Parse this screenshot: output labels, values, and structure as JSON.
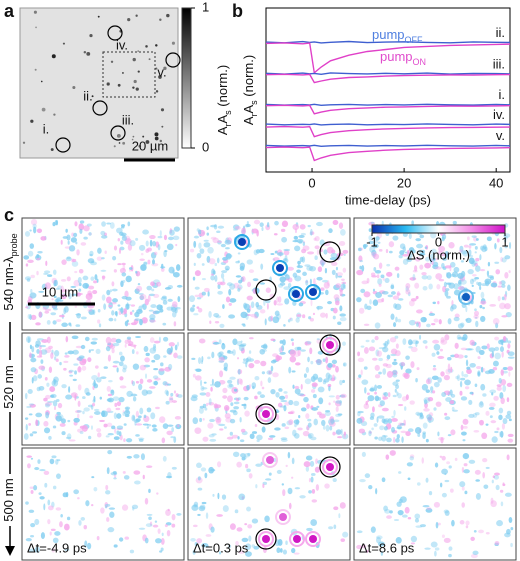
{
  "panel_a": {
    "label": "a",
    "scale_bar": "20 µm",
    "markers": [
      "i.",
      "ii.",
      "iii.",
      "iv.",
      "v."
    ],
    "colorbar": {
      "lim": [
        0,
        1
      ],
      "ticks": [
        0,
        1
      ],
      "label": {
        "parts": [
          "A",
          "r",
          "A",
          "s",
          " (norm.)"
        ],
        "sub": [
          false,
          true,
          false,
          true,
          false
        ]
      }
    }
  },
  "chart_data": {
    "type": "line",
    "label": "b",
    "x_label": "time-delay (ps)",
    "y_label": {
      "parts": [
        "A",
        "r",
        "A",
        "s",
        " (norm.)"
      ],
      "sub": [
        false,
        true,
        false,
        true,
        false
      ]
    },
    "xlim": [
      -10,
      43
    ],
    "xticks": [
      0,
      20,
      40
    ],
    "ylim": [
      0,
      10
    ],
    "legend": [
      {
        "parts": [
          "pump",
          "OFF"
        ],
        "sub": [
          false,
          true
        ],
        "color": "#4f7fe0"
      },
      {
        "parts": [
          "pump",
          "ON"
        ],
        "sub": [
          false,
          true
        ],
        "color": "#e04ccc"
      }
    ],
    "trace_labels": [
      "ii.",
      "iii.",
      "i.",
      "iv.",
      "v."
    ],
    "x": [
      -10,
      -6,
      -2,
      -0.5,
      0.5,
      2,
      4,
      8,
      12,
      16,
      20,
      25,
      30,
      35,
      40,
      43
    ],
    "series": [
      {
        "color": "#3f5fd0",
        "values": [
          7.92,
          7.88,
          7.95,
          7.9,
          7.93,
          7.87,
          7.91,
          7.96,
          7.89,
          7.92,
          7.94,
          7.9,
          7.88,
          7.93,
          7.91,
          7.9
        ]
      },
      {
        "color": "#e040c8",
        "values": [
          7.84,
          7.87,
          7.82,
          7.86,
          6.05,
          6.4,
          6.78,
          7.12,
          7.35,
          7.47,
          7.6,
          7.66,
          7.72,
          7.75,
          7.78,
          7.8
        ]
      },
      {
        "color": "#3f5fd0",
        "values": [
          6.02,
          5.97,
          6.03,
          5.99,
          6.01,
          5.96,
          6.04,
          6.0,
          5.98,
          6.02,
          5.99,
          6.03,
          5.97,
          6.01,
          6.0,
          5.98
        ]
      },
      {
        "color": "#e040c8",
        "values": [
          5.93,
          5.96,
          5.92,
          5.95,
          5.45,
          5.55,
          5.66,
          5.76,
          5.8,
          5.85,
          5.88,
          5.9,
          5.92,
          5.91,
          5.93,
          5.94
        ]
      },
      {
        "color": "#3f5fd0",
        "values": [
          4.12,
          4.08,
          4.11,
          4.09,
          4.13,
          4.07,
          4.1,
          4.12,
          4.08,
          4.11,
          4.09,
          4.13,
          4.1,
          4.08,
          4.12,
          4.1
        ]
      },
      {
        "color": "#e040c8",
        "values": [
          4.04,
          4.07,
          4.03,
          4.06,
          3.55,
          3.65,
          3.76,
          3.86,
          3.91,
          3.95,
          3.97,
          4.0,
          4.02,
          4.01,
          4.03,
          4.04
        ]
      },
      {
        "color": "#3f5fd0",
        "values": [
          2.92,
          2.88,
          2.91,
          2.89,
          2.93,
          2.87,
          2.9,
          2.92,
          2.88,
          2.91,
          2.89,
          2.93,
          2.9,
          2.88,
          2.92,
          2.9
        ]
      },
      {
        "color": "#e040c8",
        "values": [
          2.74,
          2.77,
          2.73,
          2.76,
          2.15,
          2.28,
          2.4,
          2.52,
          2.58,
          2.63,
          2.66,
          2.69,
          2.71,
          2.72,
          2.73,
          2.74
        ]
      },
      {
        "color": "#3f5fd0",
        "values": [
          1.62,
          1.58,
          1.61,
          1.59,
          1.63,
          1.57,
          1.6,
          1.62,
          1.58,
          1.61,
          1.59,
          1.63,
          1.6,
          1.58,
          1.62,
          1.6
        ]
      },
      {
        "color": "#e040c8",
        "values": [
          1.49,
          1.52,
          1.48,
          1.51,
          0.7,
          0.86,
          1.02,
          1.18,
          1.26,
          1.33,
          1.38,
          1.41,
          1.44,
          1.45,
          1.47,
          1.48
        ]
      }
    ]
  },
  "panel_c": {
    "label": "c",
    "scale_bar": "10 µm",
    "rows": [
      {
        "parts": [
          "540 nm-λ",
          "probe"
        ],
        "sub": [
          false,
          true
        ]
      },
      {
        "parts": [
          "520 nm"
        ],
        "sub": [
          false
        ]
      },
      {
        "parts": [
          "500 nm"
        ],
        "sub": [
          false
        ]
      }
    ],
    "columns": [
      "Δt=-4.9 ps",
      "Δt=0.3 ps",
      "Δt=8.6 ps"
    ],
    "colorbar": {
      "lim": [
        -1,
        1
      ],
      "ticks": [
        -1,
        0,
        1
      ],
      "label": "ΔS (norm.)"
    }
  }
}
